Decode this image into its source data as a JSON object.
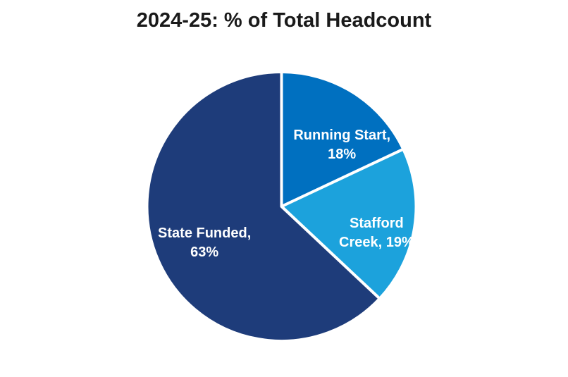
{
  "chart_data": {
    "type": "pie",
    "title": "2024-25: % of Total Headcount",
    "categories": [
      "Running Start",
      "Stafford Creek",
      "State Funded"
    ],
    "values": [
      18,
      19,
      63
    ],
    "start_angle_deg": 0,
    "direction": "clockwise",
    "legend": "none - data labels inside slices",
    "background_color": "#FFFFFF",
    "slice_border_color": "#FFFFFF",
    "title_color": "#1A1A1A",
    "label_text_color": "#FFFFFF",
    "slices": [
      {
        "label": "Running Start",
        "value": 18,
        "color": "#0070C0",
        "label_line1": "Running Start,",
        "label_line2": "18%",
        "label_x_pct": 60.2,
        "label_y_pct": 38.5
      },
      {
        "label": "Stafford Creek",
        "value": 19,
        "color": "#1CA2DC",
        "label_line1": "Stafford",
        "label_line2": "Creek, 19%",
        "label_x_pct": 66.3,
        "label_y_pct": 61.9
      },
      {
        "label": "State Funded",
        "value": 63,
        "color": "#1E3C7A",
        "label_line1": "State Funded,",
        "label_line2": "63%",
        "label_x_pct": 36.0,
        "label_y_pct": 64.5
      }
    ]
  }
}
